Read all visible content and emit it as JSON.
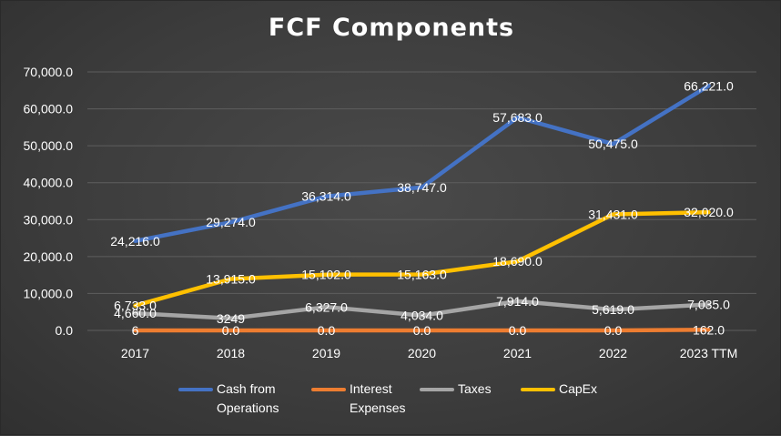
{
  "chart_data": {
    "type": "line",
    "title": "FCF Components",
    "categories": [
      "2017",
      "2018",
      "2019",
      "2020",
      "2021",
      "2022",
      "2023 TTM"
    ],
    "ylim": [
      0,
      70000
    ],
    "yticks": [
      "0.0",
      "10,000.0",
      "20,000.0",
      "30,000.0",
      "40,000.0",
      "50,000.0",
      "60,000.0",
      "70,000.0"
    ],
    "grid": true,
    "legend_position": "bottom",
    "series": [
      {
        "name": "Cash from Operations",
        "legend_lines": [
          "Cash from",
          "Operations"
        ],
        "color": "#4472c4",
        "values": [
          24216,
          29274,
          36314,
          38747,
          57683,
          50475,
          66221
        ],
        "labels": [
          "24,216.0",
          "29,274.0",
          "36,314.0",
          "38,747.0",
          "57,683.0",
          "50,475.0",
          "66,221.0"
        ]
      },
      {
        "name": "Interest Expenses",
        "legend_lines": [
          "Interest",
          "Expenses"
        ],
        "color": "#ed7d31",
        "values": [
          6,
          0,
          0,
          0,
          0,
          0,
          162
        ],
        "labels": [
          "6",
          "0.0",
          "0.0",
          "0.0",
          "0.0",
          "0.0",
          "162.0"
        ]
      },
      {
        "name": "Taxes",
        "legend_lines": [
          "Taxes"
        ],
        "color": "#a5a5a5",
        "values": [
          4660,
          3249,
          6327,
          4034,
          7914,
          5619,
          7035
        ],
        "labels": [
          "4,660.0",
          "3249",
          "6,327.0",
          "4,034.0",
          "7,914.0",
          "5,619.0",
          "7,035.0"
        ]
      },
      {
        "name": "CapEx",
        "legend_lines": [
          "CapEx"
        ],
        "color": "#ffc000",
        "values": [
          6733,
          13915,
          15102,
          15163,
          18690,
          31431,
          32020
        ],
        "labels": [
          "6,733.0",
          "13,915.0",
          "15,102.0",
          "15,163.0",
          "18,690.0",
          "31,431.0",
          "32,020.0"
        ]
      }
    ]
  }
}
